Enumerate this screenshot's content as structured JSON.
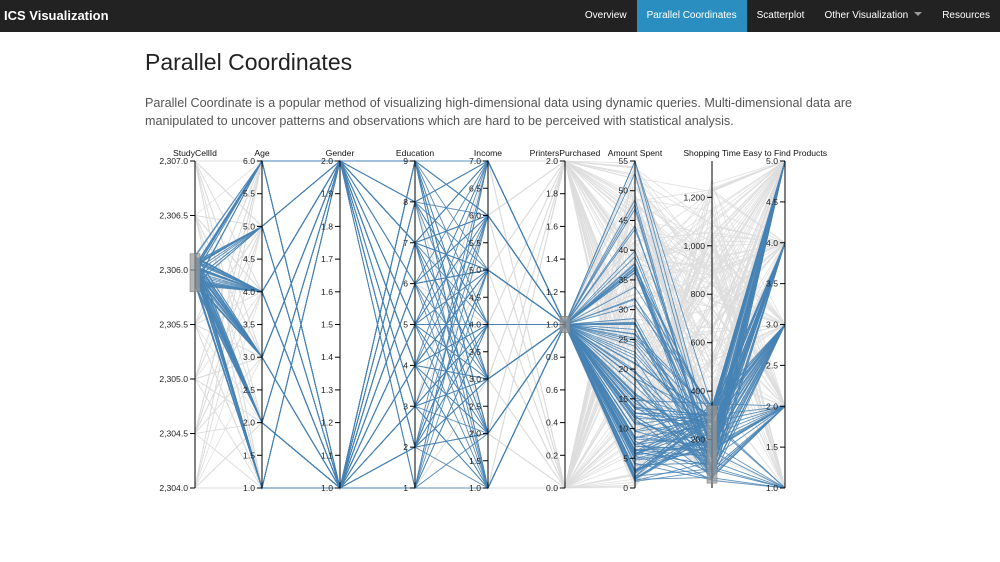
{
  "navbar": {
    "brand": "ICS Visualization",
    "items": [
      {
        "label": "Overview",
        "active": false
      },
      {
        "label": "Parallel Coordinates",
        "active": true
      },
      {
        "label": "Scatterplot",
        "active": false
      },
      {
        "label": "Other Visualization",
        "active": false,
        "dropdown": true
      },
      {
        "label": "Resources",
        "active": false
      }
    ]
  },
  "page": {
    "title": "Parallel Coordinates",
    "description": "Parallel Coordinate is a popular method of visualizing high-dimensional data using dynamic queries. Multi-dimensional data are manipulated to uncover patterns and observations which are hard to be perceived with statistical analysis."
  },
  "colors": {
    "navbar": "#222222",
    "active_nav": "#2a8fc0",
    "selected_line": "#4682b4",
    "background_line": "#dddddd",
    "brush": "#999999"
  },
  "chart_data": {
    "type": "parallel-coordinates",
    "axes": [
      {
        "name": "StudyCellId",
        "domain": [
          2304.0,
          2307.0
        ],
        "ticks": [
          "2,304.0",
          "2,304.5",
          "2,305.0",
          "2,305.5",
          "2,306.0",
          "2,306.5",
          "2,307.0"
        ],
        "brush": [
          2305.8,
          2306.15
        ]
      },
      {
        "name": "Age",
        "domain": [
          1.0,
          6.0
        ],
        "ticks": [
          "1.0",
          "1.5",
          "2.0",
          "2.5",
          "3.0",
          "3.5",
          "4.0",
          "4.5",
          "5.0",
          "5.5",
          "6.0"
        ]
      },
      {
        "name": "Gender",
        "domain": [
          1.0,
          2.0
        ],
        "ticks": [
          "1.0",
          "1.1",
          "1.2",
          "1.3",
          "1.4",
          "1.5",
          "1.6",
          "1.7",
          "1.8",
          "1.9",
          "2.0"
        ]
      },
      {
        "name": "Education",
        "domain": [
          1,
          9
        ],
        "ticks": [
          "1",
          "2",
          "3",
          "4",
          "5",
          "6",
          "7",
          "8",
          "9"
        ]
      },
      {
        "name": "Income",
        "domain": [
          1.0,
          7.0
        ],
        "ticks": [
          "1.0",
          "1.5",
          "2.0",
          "2.5",
          "3.0",
          "3.5",
          "4.0",
          "4.5",
          "5.0",
          "5.5",
          "6.0",
          "6.5",
          "7.0"
        ]
      },
      {
        "name": "PrintersPurchased",
        "domain": [
          0.0,
          2.0
        ],
        "ticks": [
          "0.0",
          "0.2",
          "0.4",
          "0.6",
          "0.8",
          "1.0",
          "1.2",
          "1.4",
          "1.6",
          "1.8",
          "2.0"
        ],
        "brush": [
          0.95,
          1.05
        ]
      },
      {
        "name": "Amount Spent",
        "domain": [
          0,
          55
        ],
        "ticks": [
          "0",
          "5",
          "10",
          "15",
          "20",
          "25",
          "30",
          "35",
          "40",
          "45",
          "50",
          "55"
        ]
      },
      {
        "name": "Shopping Time",
        "domain": [
          0,
          1350
        ],
        "ticks": [
          "200",
          "400",
          "600",
          "800",
          "1,000",
          "1,200"
        ],
        "tick_values": [
          200,
          400,
          600,
          800,
          1000,
          1200
        ],
        "brush": [
          20,
          340
        ]
      },
      {
        "name": "Easy to Find Products",
        "domain": [
          1.0,
          5.0
        ],
        "ticks": [
          "1.0",
          "1.5",
          "2.0",
          "2.5",
          "3.0",
          "3.5",
          "4.0",
          "4.5",
          "5.0"
        ]
      }
    ]
  }
}
